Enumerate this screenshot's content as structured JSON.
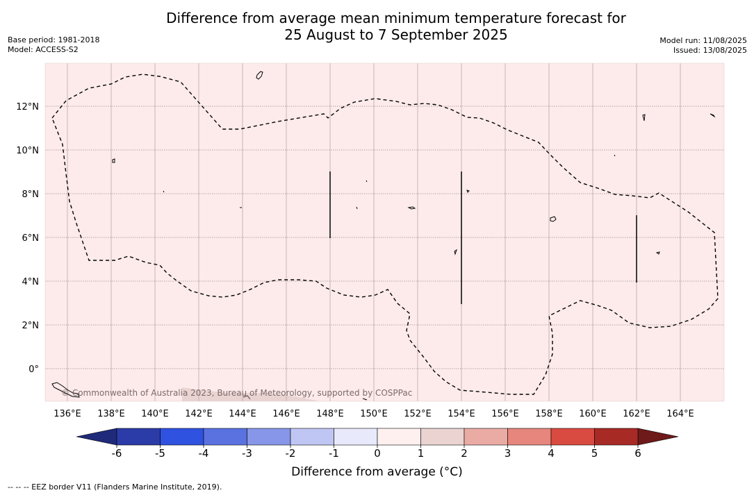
{
  "header": {
    "title_line1": "Difference from average mean minimum temperature forecast for",
    "title_line2": "25 August to 7 September 2025",
    "base_period": "Base period: 1981-2018",
    "model": "Model: ACCESS-S2",
    "model_run": "Model run: 11/08/2025",
    "issued": "Issued: 13/08/2025"
  },
  "map": {
    "background_color": "#fcebea",
    "lon_ticks": [
      "136°E",
      "138°E",
      "140°E",
      "142°E",
      "144°E",
      "146°E",
      "148°E",
      "150°E",
      "152°E",
      "154°E",
      "156°E",
      "158°E",
      "160°E",
      "162°E",
      "164°E"
    ],
    "lat_ticks": [
      "12°N",
      "10°N",
      "8°N",
      "6°N",
      "4°N",
      "2°N",
      "0°"
    ],
    "copyright": "© Commonwealth of Australia 2023, Bureau of Meteorology, supported by COSPPac"
  },
  "colorbar": {
    "label": "Difference from average (°C)",
    "tick_labels": [
      "-6",
      "-5",
      "-4",
      "-3",
      "-2",
      "-1",
      "0",
      "1",
      "2",
      "3",
      "4",
      "5",
      "6"
    ],
    "colors": [
      "#2b3ca8",
      "#3052e0",
      "#5a72e0",
      "#8796e8",
      "#c0c6f3",
      "#e8eafb",
      "#fdf0ef",
      "#ebd3d2",
      "#ebaba5",
      "#e6867d",
      "#d94a40",
      "#a82a25"
    ],
    "under_color": "#1f2a7a",
    "over_color": "#6e1a1a"
  },
  "legend": {
    "eez_text": "-- -- -- EEZ border V11 (Flanders Marine Institute, 2019)."
  }
}
